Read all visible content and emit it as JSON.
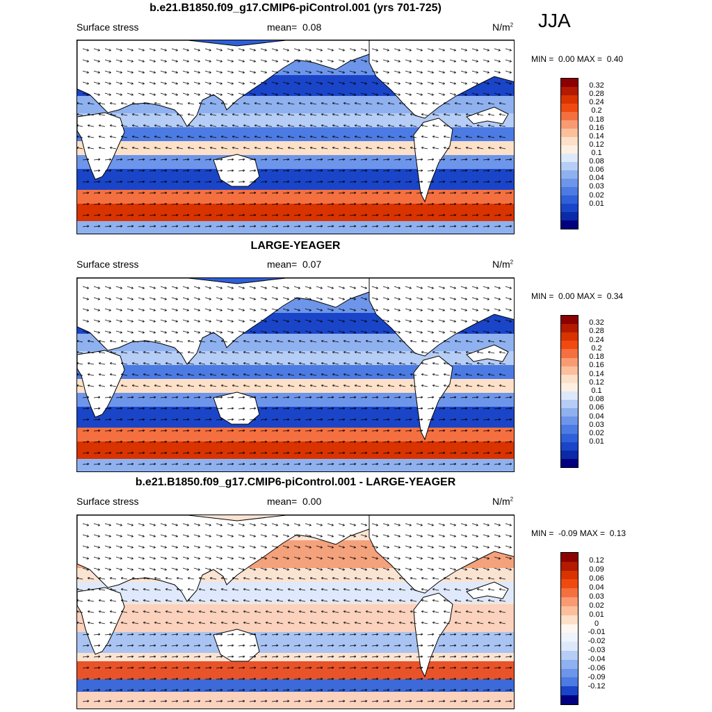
{
  "season": "JJA",
  "panels": [
    {
      "title": "b.e21.B1850.f09_g17.CMIP6-piControl.001 (yrs 701-725)",
      "field": "Surface stress",
      "mean_label": "mean=",
      "mean": "0.08",
      "units_base": "N/m",
      "units_exp": "2",
      "min_label": "MIN =",
      "min": "0.00",
      "max_label": "MAX =",
      "max": "0.40",
      "colorbar_labels": [
        "0.32",
        "0.28",
        "0.24",
        "0.2",
        "0.18",
        "0.16",
        "0.14",
        "0.12",
        "0.1",
        "0.08",
        "0.06",
        "0.04",
        "0.03",
        "0.02",
        "0.01"
      ],
      "colorbar_colors": [
        "#8b0000",
        "#b31a00",
        "#d93300",
        "#f04a10",
        "#f57040",
        "#f99b72",
        "#fbbf9c",
        "#fde0c8",
        "#fdf0e2",
        "#dde9fb",
        "#b6cdf5",
        "#8fb1ef",
        "#6d96ea",
        "#4c7be3",
        "#2f60d9",
        "#1a45c8",
        "#0a2aa8",
        "#000080"
      ]
    },
    {
      "title": "LARGE-YEAGER",
      "field": "Surface stress",
      "mean_label": "mean=",
      "mean": "0.07",
      "units_base": "N/m",
      "units_exp": "2",
      "min_label": "MIN =",
      "min": "0.00",
      "max_label": "MAX =",
      "max": "0.34",
      "colorbar_labels": [
        "0.32",
        "0.28",
        "0.24",
        "0.2",
        "0.18",
        "0.16",
        "0.14",
        "0.12",
        "0.1",
        "0.08",
        "0.06",
        "0.04",
        "0.03",
        "0.02",
        "0.01"
      ],
      "colorbar_colors": [
        "#8b0000",
        "#b31a00",
        "#d93300",
        "#f04a10",
        "#f57040",
        "#f99b72",
        "#fbbf9c",
        "#fde0c8",
        "#fdf0e2",
        "#dde9fb",
        "#b6cdf5",
        "#8fb1ef",
        "#6d96ea",
        "#4c7be3",
        "#2f60d9",
        "#1a45c8",
        "#0a2aa8",
        "#000080"
      ]
    },
    {
      "title": "b.e21.B1850.f09_g17.CMIP6-piControl.001 - LARGE-YEAGER",
      "field": "Surface stress",
      "mean_label": "mean=",
      "mean": "0.00",
      "units_base": "N/m",
      "units_exp": "2",
      "min_label": "MIN =",
      "min": "-0.09",
      "max_label": "MAX =",
      "max": "0.13",
      "colorbar_labels": [
        "0.12",
        "0.09",
        "0.06",
        "0.04",
        "0.03",
        "0.02",
        "0.01",
        "0",
        "-0.01",
        "-0.02",
        "-0.03",
        "-0.04",
        "-0.06",
        "-0.09",
        "-0.12"
      ],
      "colorbar_colors": [
        "#8b0000",
        "#b31a00",
        "#d93300",
        "#f04a10",
        "#f57040",
        "#f99b72",
        "#fbbf9c",
        "#fde0c8",
        "#fff7ef",
        "#eef3fc",
        "#dde9fb",
        "#b6cdf5",
        "#8fb1ef",
        "#6d96ea",
        "#4c7be3",
        "#1a45c8",
        "#000080"
      ]
    }
  ]
}
